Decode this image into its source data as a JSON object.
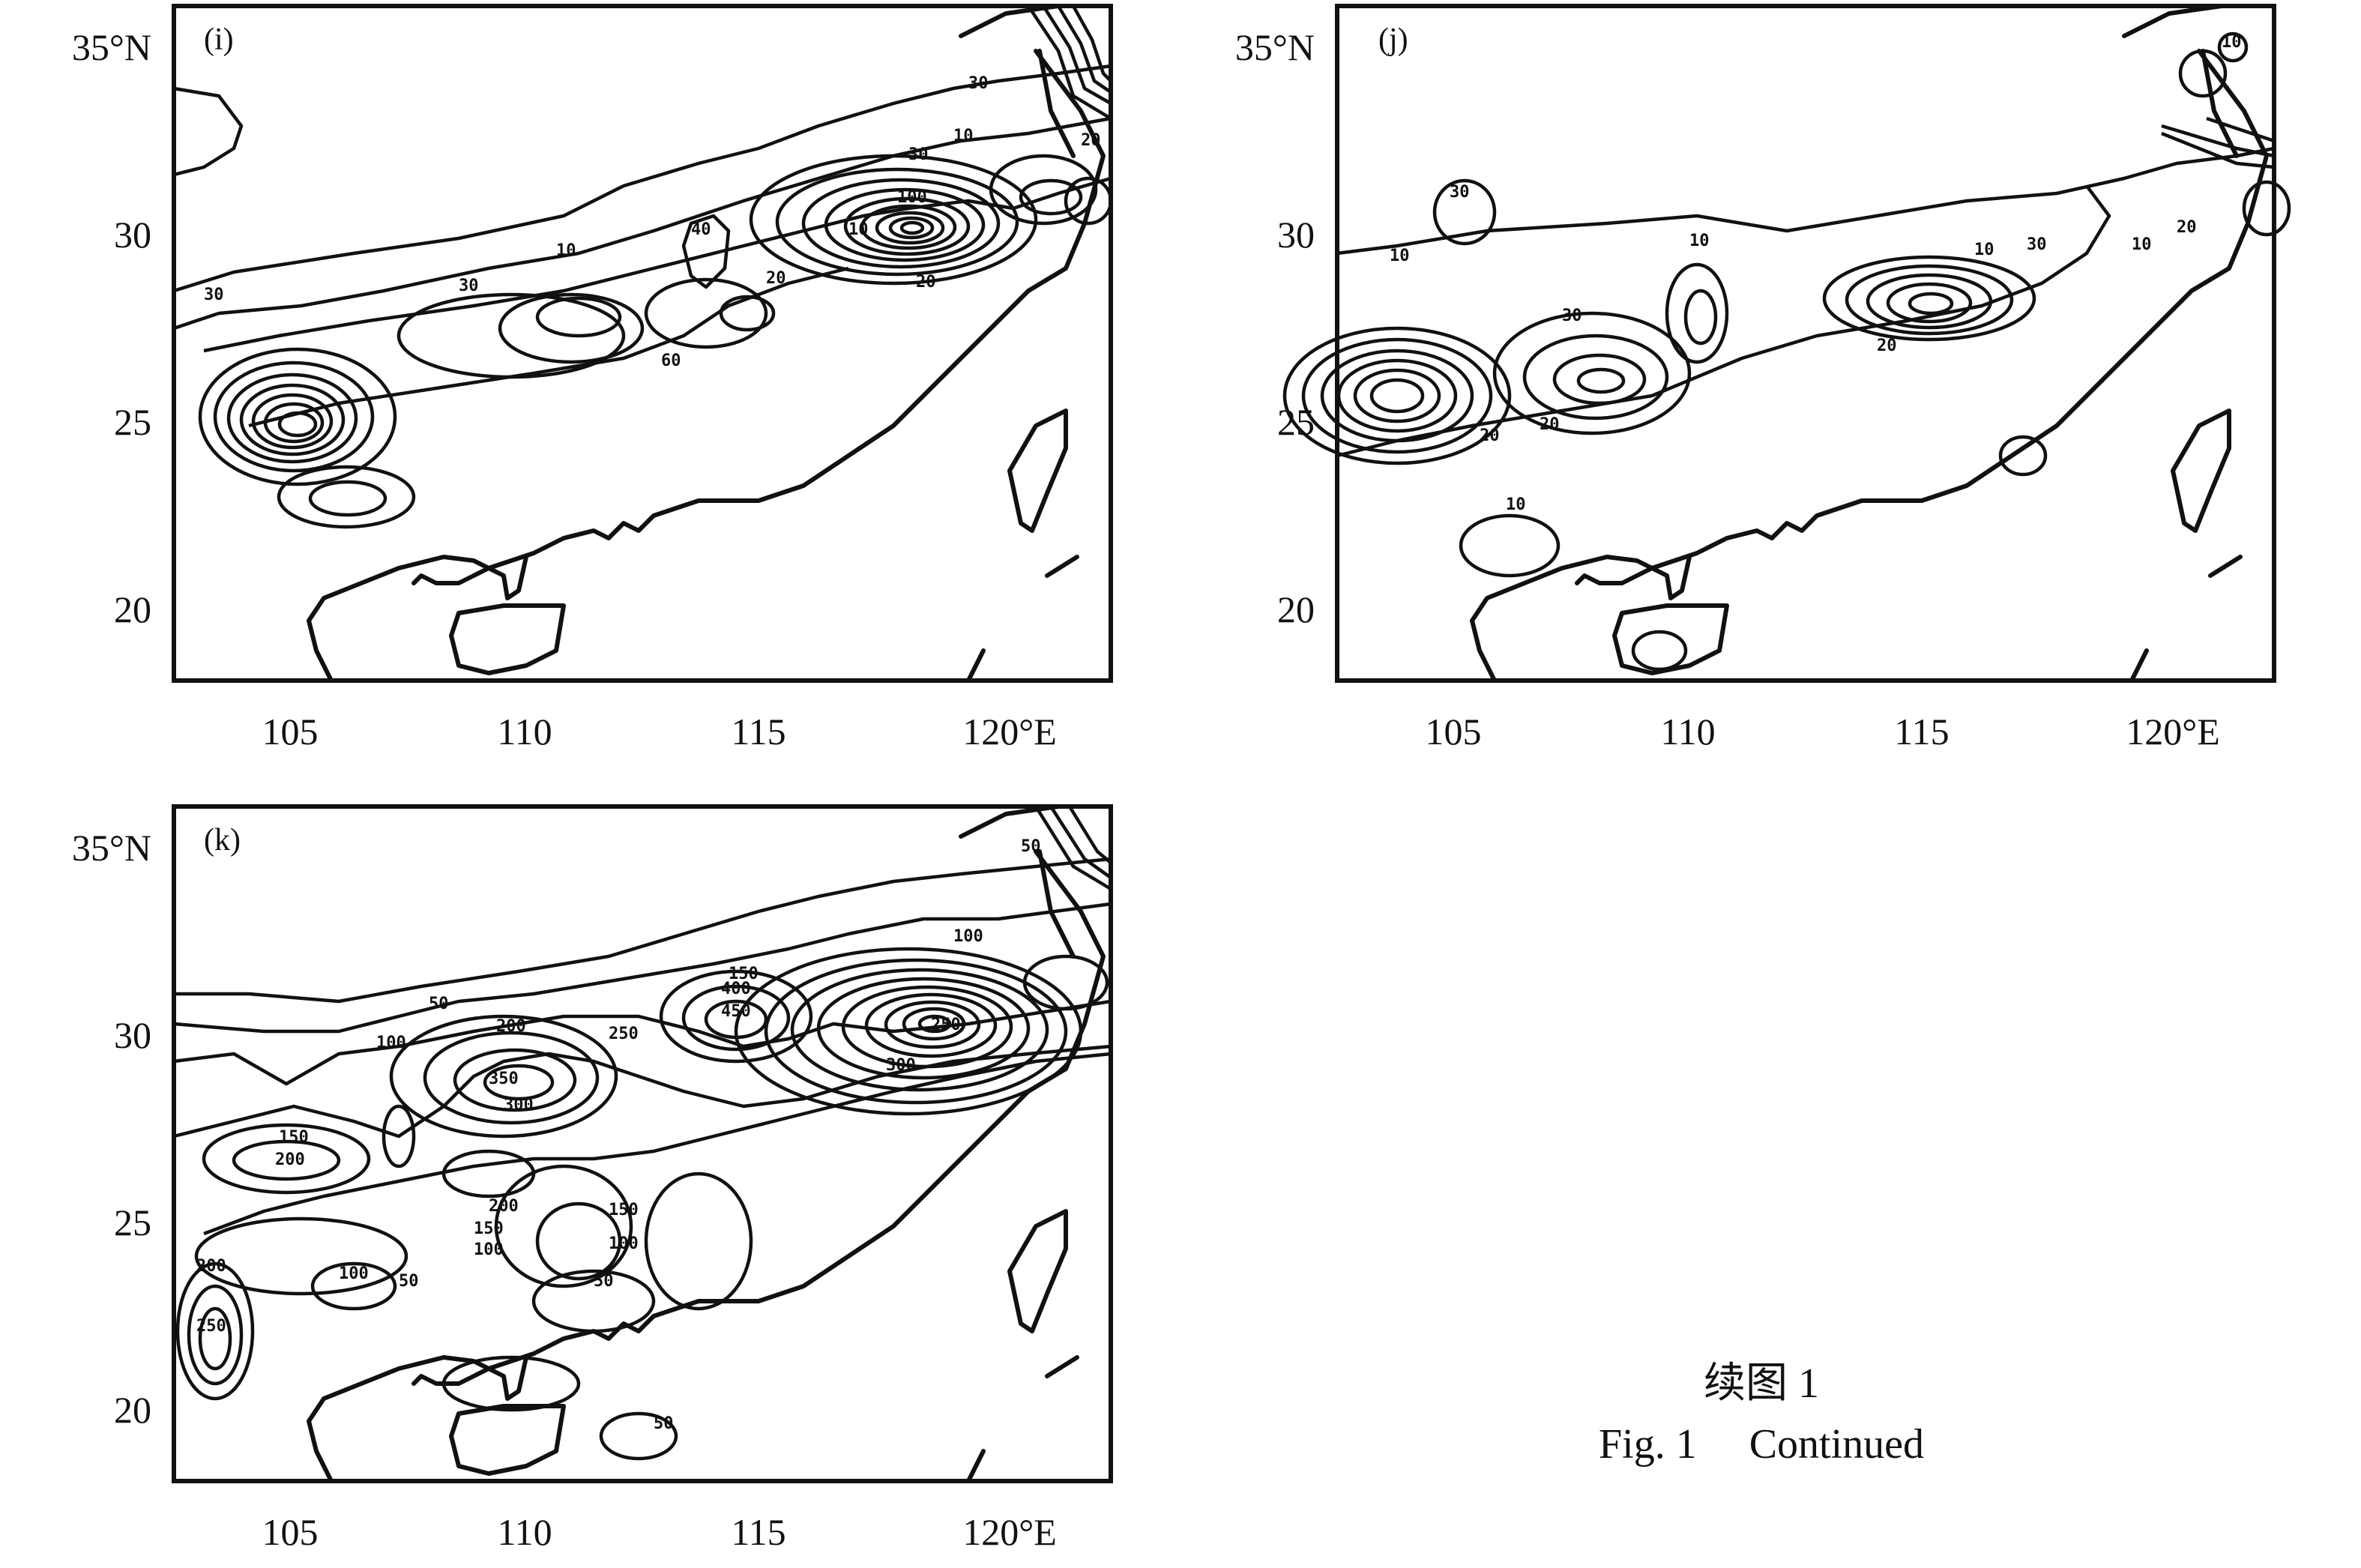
{
  "panels": [
    {
      "label": "(i)",
      "y_ticks": [
        "35°N",
        "30",
        "25",
        "20"
      ],
      "x_ticks": [
        "105",
        "110",
        "115",
        "120°E"
      ],
      "contour_labels": [
        "10",
        "20",
        "30",
        "40",
        "60",
        "100",
        "30",
        "10",
        "20",
        "30",
        "10",
        "20",
        "30"
      ]
    },
    {
      "label": "(j)",
      "y_ticks": [
        "35°N",
        "30",
        "25",
        "20"
      ],
      "x_ticks": [
        "105",
        "110",
        "115",
        "120°E"
      ],
      "contour_labels": [
        "10",
        "20",
        "30",
        "10",
        "20",
        "30",
        "10",
        "20",
        "30",
        "10",
        "20",
        "10",
        "10"
      ]
    },
    {
      "label": "(k)",
      "y_ticks": [
        "35°N",
        "30",
        "25",
        "20"
      ],
      "x_ticks": [
        "105",
        "110",
        "115",
        "120°E"
      ],
      "contour_labels": [
        "50",
        "100",
        "150",
        "200",
        "250",
        "300",
        "350",
        "400",
        "450",
        "100",
        "50",
        "150",
        "200",
        "250",
        "300",
        "100",
        "50",
        "150",
        "200",
        "50",
        "100",
        "150",
        "200",
        "250",
        "50",
        "100"
      ]
    }
  ],
  "caption": {
    "cn": "续图 1",
    "en": "Fig. 1     Continued"
  }
}
